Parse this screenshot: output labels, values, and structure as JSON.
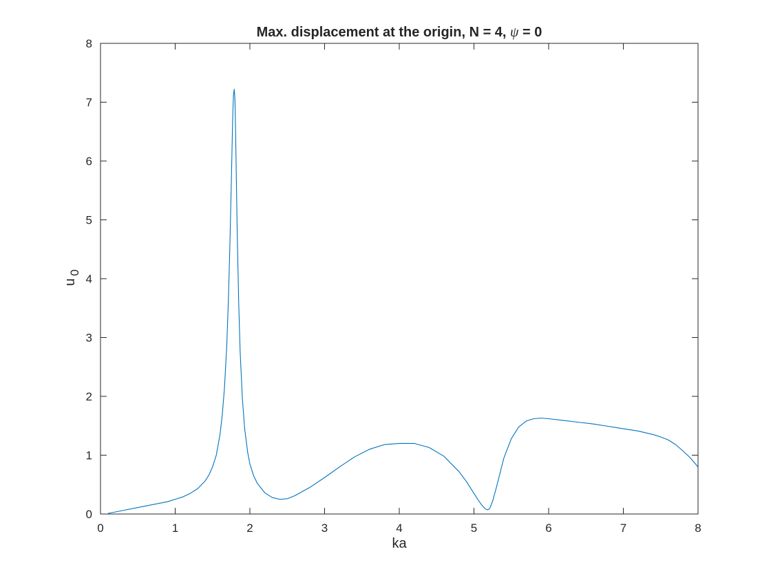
{
  "chart_data": {
    "type": "line",
    "title_main": "Max. displacement at the origin, N = 4, ",
    "title_symbol": "ψ",
    "title_tail": " = 0",
    "xlabel": "ka",
    "ylabel_main": "u",
    "ylabel_sub": "0",
    "xlim": [
      0,
      8
    ],
    "ylim": [
      0,
      8
    ],
    "xticks": [
      0,
      1,
      2,
      3,
      4,
      5,
      6,
      7,
      8
    ],
    "yticks": [
      0,
      1,
      2,
      3,
      4,
      5,
      6,
      7,
      8
    ],
    "grid": false,
    "box": true,
    "colors": {
      "line": "#0072BD",
      "axes": "#262626",
      "background": "#ffffff"
    },
    "series": [
      {
        "x": [
          0.1,
          0.3,
          0.5,
          0.7,
          0.9,
          1.1,
          1.2,
          1.3,
          1.4,
          1.45,
          1.5,
          1.55,
          1.6,
          1.63,
          1.66,
          1.69,
          1.71,
          1.73,
          1.75,
          1.76,
          1.77,
          1.78,
          1.79,
          1.8,
          1.81,
          1.82,
          1.83,
          1.85,
          1.87,
          1.9,
          1.93,
          1.97,
          2.0,
          2.05,
          2.1,
          2.2,
          2.3,
          2.4,
          2.5,
          2.6,
          2.7,
          2.8,
          3.0,
          3.2,
          3.4,
          3.6,
          3.8,
          4.0,
          4.2,
          4.4,
          4.6,
          4.8,
          4.9,
          5.0,
          5.05,
          5.1,
          5.15,
          5.18,
          5.2,
          5.22,
          5.25,
          5.3,
          5.35,
          5.4,
          5.5,
          5.6,
          5.7,
          5.8,
          5.9,
          6.0,
          6.2,
          6.4,
          6.6,
          6.8,
          7.0,
          7.2,
          7.4,
          7.5,
          7.6,
          7.7,
          7.8,
          7.9,
          8.0
        ],
        "y": [
          0.01,
          0.06,
          0.11,
          0.16,
          0.21,
          0.29,
          0.35,
          0.43,
          0.56,
          0.66,
          0.8,
          1.0,
          1.35,
          1.68,
          2.15,
          2.85,
          3.55,
          4.45,
          5.55,
          6.15,
          6.75,
          7.12,
          7.22,
          7.05,
          6.4,
          5.6,
          4.8,
          3.6,
          2.75,
          1.95,
          1.45,
          1.05,
          0.85,
          0.65,
          0.52,
          0.36,
          0.28,
          0.25,
          0.26,
          0.31,
          0.38,
          0.45,
          0.62,
          0.8,
          0.97,
          1.1,
          1.18,
          1.2,
          1.2,
          1.13,
          0.98,
          0.72,
          0.55,
          0.35,
          0.25,
          0.16,
          0.09,
          0.07,
          0.08,
          0.12,
          0.22,
          0.45,
          0.7,
          0.95,
          1.28,
          1.48,
          1.58,
          1.62,
          1.63,
          1.62,
          1.59,
          1.56,
          1.53,
          1.49,
          1.45,
          1.41,
          1.35,
          1.31,
          1.26,
          1.18,
          1.07,
          0.95,
          0.8
        ]
      }
    ]
  }
}
